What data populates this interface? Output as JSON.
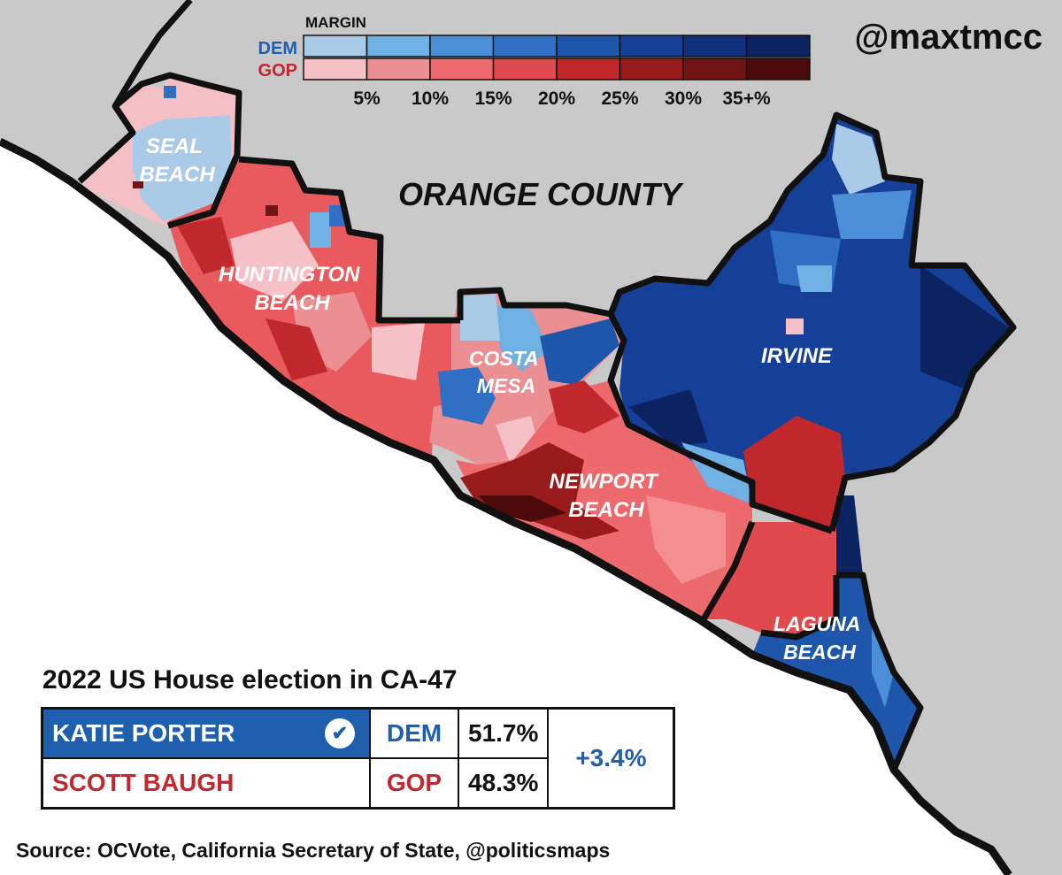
{
  "handle": "@maxtmcc",
  "map": {
    "region_label": "ORANGE COUNTY",
    "cities": [
      {
        "name": "seal-beach",
        "lines": [
          "SEAL",
          "BEACH"
        ]
      },
      {
        "name": "huntington-beach",
        "lines": [
          "HUNTINGTON",
          "BEACH"
        ]
      },
      {
        "name": "costa-mesa",
        "lines": [
          "COSTA",
          "MESA"
        ]
      },
      {
        "name": "irvine",
        "lines": [
          "IRVINE"
        ]
      },
      {
        "name": "newport-beach",
        "lines": [
          "NEWPORT",
          "BEACH"
        ]
      },
      {
        "name": "laguna-beach",
        "lines": [
          "LAGUNA",
          "BEACH"
        ]
      }
    ]
  },
  "legend": {
    "title": "MARGIN",
    "dem_label": "DEM",
    "gop_label": "GOP",
    "ticks": [
      "5%",
      "10%",
      "15%",
      "20%",
      "25%",
      "30%",
      "35+%"
    ],
    "dem_colors": [
      "#a9cbe8",
      "#6eb1e2",
      "#4b8fd9",
      "#2f70c4",
      "#1d56aa",
      "#163f98",
      "#11307b",
      "#0c2362"
    ],
    "gop_colors": [
      "#f5c0c6",
      "#eb8f92",
      "#ed6b6e",
      "#e04a4e",
      "#c0282c",
      "#981b1b",
      "#721414",
      "#4c0a0a"
    ]
  },
  "results": {
    "title": "2022 US House election in CA-47",
    "candidates": [
      {
        "name": "KATIE PORTER",
        "party": "DEM",
        "pct": "51.7%",
        "winner": true
      },
      {
        "name": "SCOTT BAUGH",
        "party": "GOP",
        "pct": "48.3%",
        "winner": false
      }
    ],
    "margin": "+3.4%",
    "check_icon": "✔"
  },
  "source": "Source: OCVote, California Secretary of State, @politicsmaps",
  "colors": {
    "land": "#c9c9c9",
    "ocean": "#ffffff",
    "dem_accent": "#1f5fae",
    "gop_accent": "#c1272d"
  }
}
